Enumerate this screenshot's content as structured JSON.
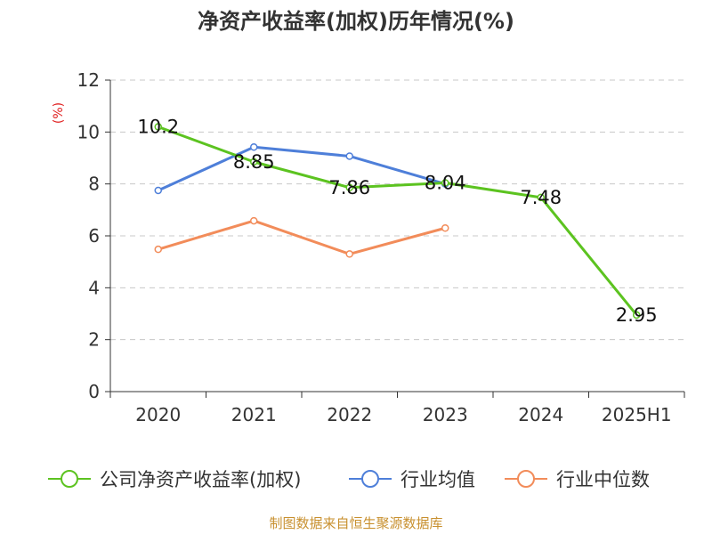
{
  "chart_data": {
    "type": "line",
    "title": "净资产收益率(加权)历年情况(%)",
    "ylabel": "(%)",
    "categories": [
      "2020",
      "2021",
      "2022",
      "2023",
      "2024",
      "2025H1"
    ],
    "ylim": [
      0,
      12
    ],
    "yticks": [
      "0",
      "2",
      "4",
      "6",
      "8",
      "10",
      "12"
    ],
    "grid": true,
    "legend_position": "bottom",
    "series": [
      {
        "name": "公司净资产收益率(加权)",
        "values": [
          10.2,
          8.85,
          7.86,
          8.04,
          7.48,
          2.95
        ],
        "labels": [
          "10.2",
          "8.85",
          "7.86",
          "8.04",
          "7.48",
          "2.95"
        ],
        "color": "#5cc320"
      },
      {
        "name": "行业均值",
        "values": [
          7.75,
          9.42,
          9.07,
          8.0,
          null,
          null
        ],
        "color": "#4e7fd9"
      },
      {
        "name": "行业中位数",
        "values": [
          5.48,
          6.58,
          5.3,
          6.3,
          null,
          null
        ],
        "color": "#f28c5a"
      }
    ]
  },
  "footer": {
    "source": "制图数据来自恒生聚源数据库"
  },
  "colors": {
    "axis": "#333333",
    "grid": "#c8c8c8",
    "ylabel": "#e02020",
    "source": "#c8902f"
  }
}
